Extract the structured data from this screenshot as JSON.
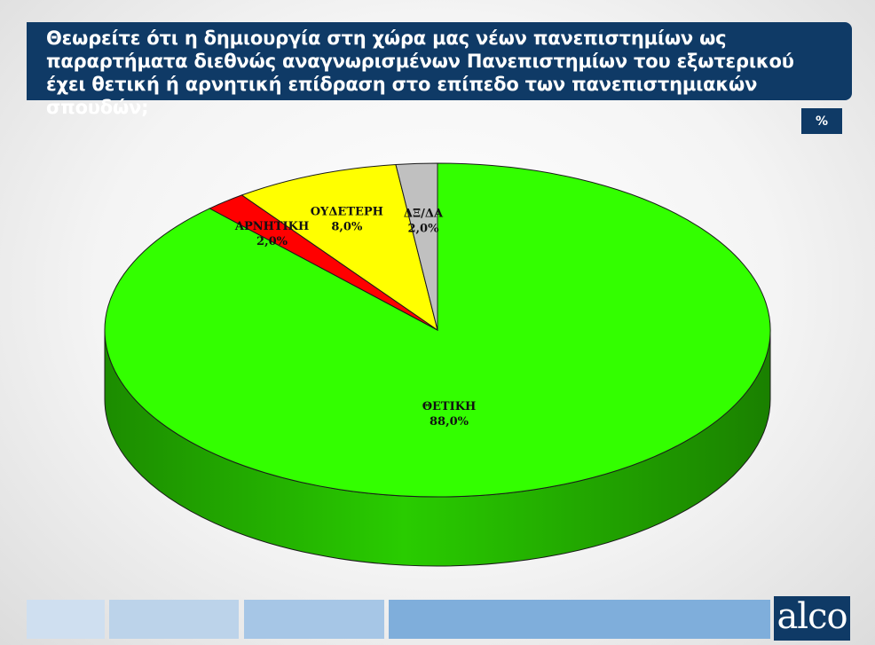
{
  "question": "Θεωρείτε ότι η δημιουργία στη χώρα μας νέων πανεπιστημίων ως παραρτήματα διεθνώς αναγνωρισμένων Πανεπιστημίων του εξωτερικού έχει θετική ή αρνητική επίδραση στο επίπεδο των πανεπιστημιακών σπουδών;",
  "unit_badge": "%",
  "logo_text": "alco",
  "colors": {
    "header": "#0f3a66",
    "footer": [
      "#cfdff0",
      "#bcd3ea",
      "#a6c6e6",
      "#7faedb"
    ]
  },
  "chart_data": {
    "type": "pie",
    "slices": [
      {
        "label": "ΘΕΤΙΚΗ",
        "value": 88.0,
        "display": "88,0%",
        "color": "#33ff00"
      },
      {
        "label": "ΑΡΝΗΤΙΚΗ",
        "value": 2.0,
        "display": "2,0%",
        "color": "#ff0000"
      },
      {
        "label": "ΟΥΔΕΤΕΡΗ",
        "value": 8.0,
        "display": "8,0%",
        "color": "#ffff00"
      },
      {
        "label": "ΔΞ/ΔΑ",
        "value": 2.0,
        "display": "2,0%",
        "color": "#c0c0c0"
      }
    ],
    "style": "3d"
  }
}
